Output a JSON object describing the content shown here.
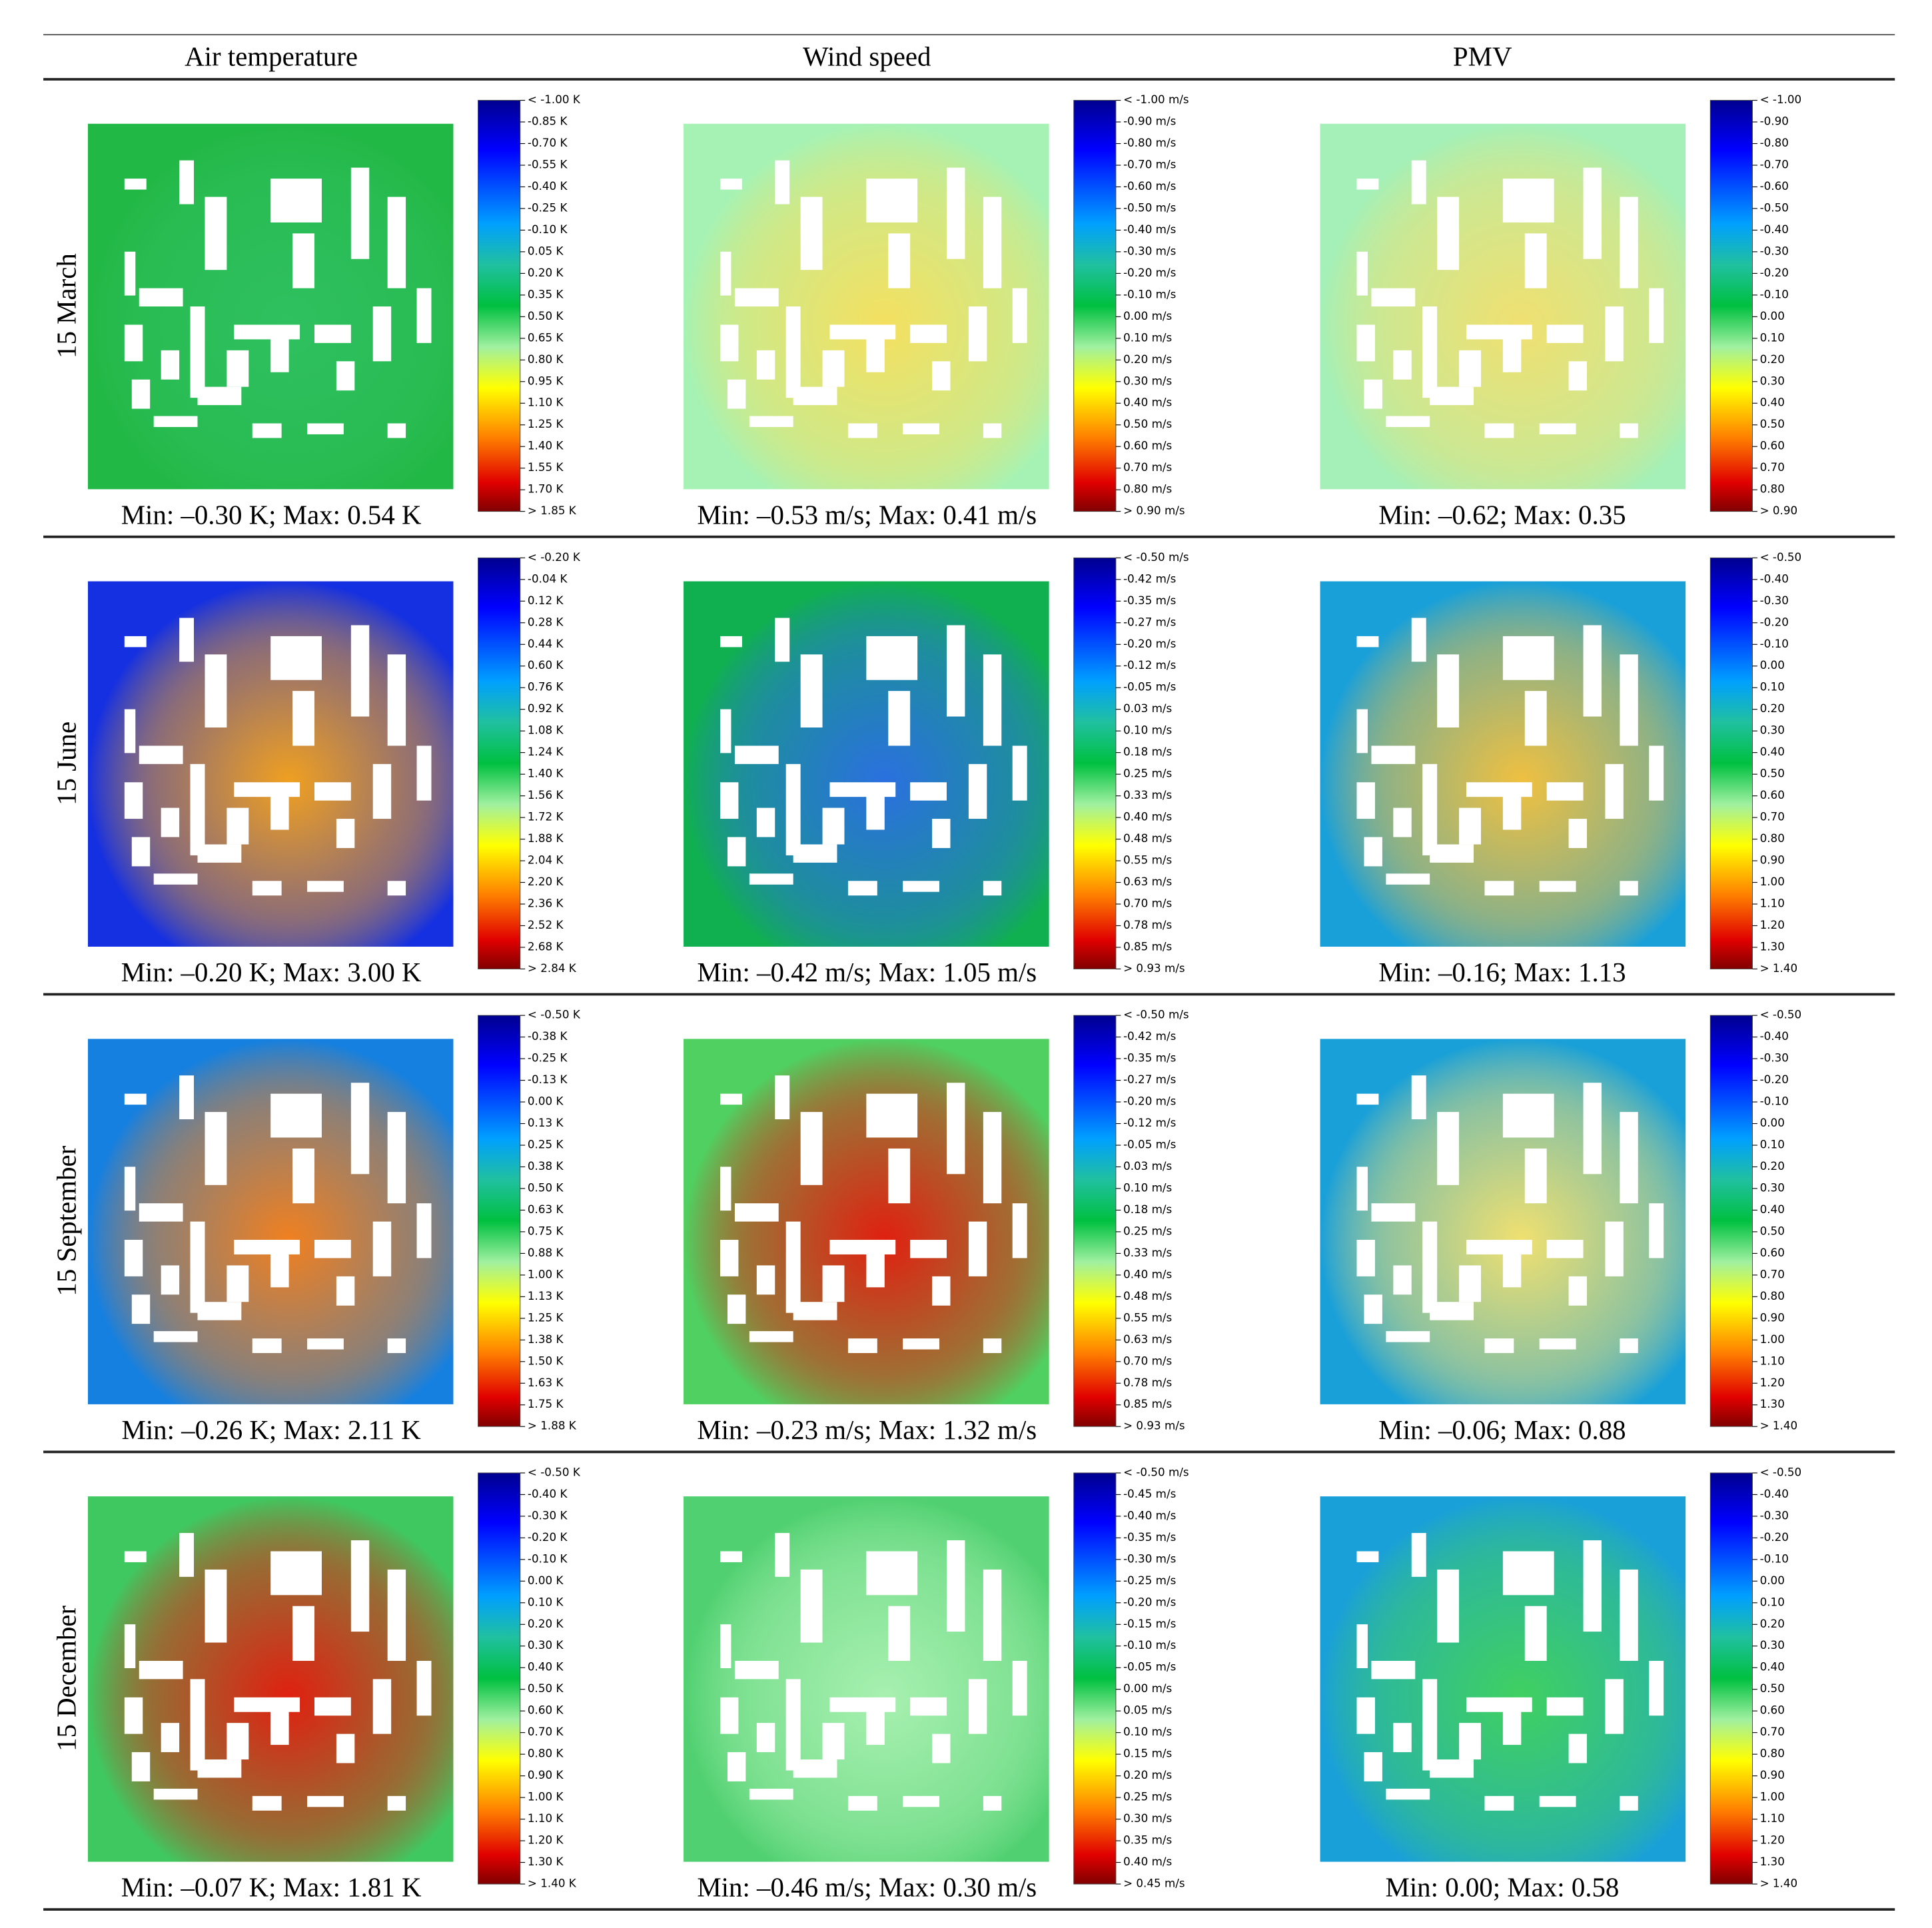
{
  "header": {
    "columns": [
      "Air temperature",
      "Wind speed",
      "PMV"
    ]
  },
  "rows": [
    {
      "label": "15 March",
      "panels": [
        {
          "colorbar": [
            "< -1.00 K",
            "-0.85 K",
            "-0.70 K",
            "-0.55 K",
            "-0.40 K",
            "-0.25 K",
            "-0.10 K",
            "0.05 K",
            "0.20 K",
            "0.35 K",
            "0.50 K",
            "0.65 K",
            "0.80 K",
            "0.95 K",
            "1.10 K",
            "1.25 K",
            "1.40 K",
            "1.55 K",
            "1.70 K",
            "> 1.85 K"
          ],
          "caption": "Min: –0.30 K; Max: 0.54 K"
        },
        {
          "colorbar": [
            "< -1.00 m/s",
            "-0.90 m/s",
            "-0.80 m/s",
            "-0.70 m/s",
            "-0.60 m/s",
            "-0.50 m/s",
            "-0.40 m/s",
            "-0.30 m/s",
            "-0.20 m/s",
            "-0.10 m/s",
            "0.00 m/s",
            "0.10 m/s",
            "0.20 m/s",
            "0.30 m/s",
            "0.40 m/s",
            "0.50 m/s",
            "0.60 m/s",
            "0.70 m/s",
            "0.80 m/s",
            "> 0.90 m/s"
          ],
          "caption": "Min: –0.53 m/s; Max: 0.41 m/s"
        },
        {
          "colorbar": [
            "< -1.00",
            "-0.90",
            "-0.80",
            "-0.70",
            "-0.60",
            "-0.50",
            "-0.40",
            "-0.30",
            "-0.20",
            "-0.10",
            "0.00",
            "0.10",
            "0.20",
            "0.30",
            "0.40",
            "0.50",
            "0.60",
            "0.70",
            "0.80",
            "> 0.90"
          ],
          "caption": "Min: –0.62; Max: 0.35"
        }
      ]
    },
    {
      "label": "15 June",
      "panels": [
        {
          "colorbar": [
            "< -0.20 K",
            "-0.04 K",
            "0.12 K",
            "0.28 K",
            "0.44 K",
            "0.60 K",
            "0.76 K",
            "0.92 K",
            "1.08 K",
            "1.24 K",
            "1.40 K",
            "1.56 K",
            "1.72 K",
            "1.88 K",
            "2.04 K",
            "2.20 K",
            "2.36 K",
            "2.52 K",
            "2.68 K",
            "> 2.84 K"
          ],
          "caption": "Min: –0.20 K; Max: 3.00 K"
        },
        {
          "colorbar": [
            "< -0.50 m/s",
            "-0.42 m/s",
            "-0.35 m/s",
            "-0.27 m/s",
            "-0.20 m/s",
            "-0.12 m/s",
            "-0.05 m/s",
            "0.03 m/s",
            "0.10 m/s",
            "0.18 m/s",
            "0.25 m/s",
            "0.33 m/s",
            "0.40 m/s",
            "0.48 m/s",
            "0.55 m/s",
            "0.63 m/s",
            "0.70 m/s",
            "0.78 m/s",
            "0.85 m/s",
            "> 0.93 m/s"
          ],
          "caption": "Min: –0.42 m/s; Max: 1.05 m/s"
        },
        {
          "colorbar": [
            "< -0.50",
            "-0.40",
            "-0.30",
            "-0.20",
            "-0.10",
            "0.00",
            "0.10",
            "0.20",
            "0.30",
            "0.40",
            "0.50",
            "0.60",
            "0.70",
            "0.80",
            "0.90",
            "1.00",
            "1.10",
            "1.20",
            "1.30",
            "> 1.40"
          ],
          "caption": "Min: –0.16; Max: 1.13"
        }
      ]
    },
    {
      "label": "15 September",
      "panels": [
        {
          "colorbar": [
            "< -0.50 K",
            "-0.38 K",
            "-0.25 K",
            "-0.13 K",
            "0.00 K",
            "0.13 K",
            "0.25 K",
            "0.38 K",
            "0.50 K",
            "0.63 K",
            "0.75 K",
            "0.88 K",
            "1.00 K",
            "1.13 K",
            "1.25 K",
            "1.38 K",
            "1.50 K",
            "1.63 K",
            "1.75 K",
            "> 1.88 K"
          ],
          "caption": "Min: –0.26 K; Max: 2.11 K"
        },
        {
          "colorbar": [
            "< -0.50 m/s",
            "-0.42 m/s",
            "-0.35 m/s",
            "-0.27 m/s",
            "-0.20 m/s",
            "-0.12 m/s",
            "-0.05 m/s",
            "0.03 m/s",
            "0.10 m/s",
            "0.18 m/s",
            "0.25 m/s",
            "0.33 m/s",
            "0.40 m/s",
            "0.48 m/s",
            "0.55 m/s",
            "0.63 m/s",
            "0.70 m/s",
            "0.78 m/s",
            "0.85 m/s",
            "> 0.93 m/s"
          ],
          "caption": "Min: –0.23 m/s; Max: 1.32 m/s"
        },
        {
          "colorbar": [
            "< -0.50",
            "-0.40",
            "-0.30",
            "-0.20",
            "-0.10",
            "0.00",
            "0.10",
            "0.20",
            "0.30",
            "0.40",
            "0.50",
            "0.60",
            "0.70",
            "0.80",
            "0.90",
            "1.00",
            "1.10",
            "1.20",
            "1.30",
            "> 1.40"
          ],
          "caption": "Min: –0.06; Max: 0.88"
        }
      ]
    },
    {
      "label": "15 December",
      "panels": [
        {
          "colorbar": [
            "< -0.50 K",
            "-0.40 K",
            "-0.30 K",
            "-0.20 K",
            "-0.10 K",
            "0.00 K",
            "0.10 K",
            "0.20 K",
            "0.30 K",
            "0.40 K",
            "0.50 K",
            "0.60 K",
            "0.70 K",
            "0.80 K",
            "0.90 K",
            "1.00 K",
            "1.10 K",
            "1.20 K",
            "1.30 K",
            "> 1.40 K"
          ],
          "caption": "Min: –0.07 K; Max: 1.81 K"
        },
        {
          "colorbar": [
            "< -0.50 m/s",
            "-0.45 m/s",
            "-0.40 m/s",
            "-0.35 m/s",
            "-0.30 m/s",
            "-0.25 m/s",
            "-0.20 m/s",
            "-0.15 m/s",
            "-0.10 m/s",
            "-0.05 m/s",
            "0.00 m/s",
            "0.05 m/s",
            "0.10 m/s",
            "0.15 m/s",
            "0.20 m/s",
            "0.25 m/s",
            "0.30 m/s",
            "0.35 m/s",
            "0.40 m/s",
            "> 0.45 m/s"
          ],
          "caption": "Min: –0.46 m/s; Max: 0.30 m/s"
        },
        {
          "colorbar": [
            "< -0.50",
            "-0.40",
            "-0.30",
            "-0.20",
            "-0.10",
            "0.00",
            "0.10",
            "0.20",
            "0.30",
            "0.40",
            "0.50",
            "0.60",
            "0.70",
            "0.80",
            "0.90",
            "1.00",
            "1.10",
            "1.20",
            "1.30",
            "> 1.40"
          ],
          "caption": "Min: 0.00; Max: 0.58"
        }
      ]
    }
  ]
}
